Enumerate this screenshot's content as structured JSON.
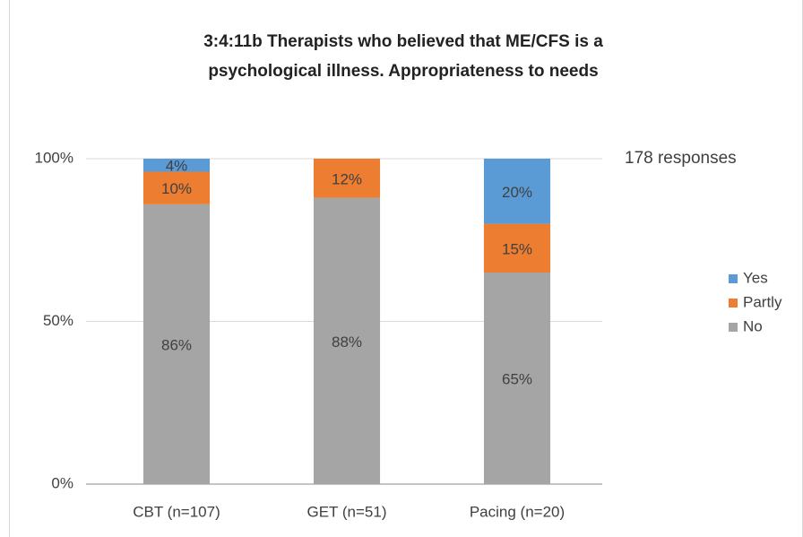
{
  "chart_data": {
    "type": "stacked_bar",
    "title": [
      "3:4:11b Therapists who believed that ME/CFS is a",
      "psychological  illness. Appropriateness to needs"
    ],
    "annotation": "178 responses",
    "categories": [
      "CBT (n=107)",
      "GET (n=51)",
      "Pacing (n=20)"
    ],
    "series": [
      {
        "name": "No",
        "color": "#a5a5a5",
        "values": [
          86,
          88,
          65
        ],
        "value_labels": [
          "86%",
          "88%",
          "65%"
        ]
      },
      {
        "name": "Partly",
        "color": "#ed7d31",
        "values": [
          10,
          12,
          15
        ],
        "value_labels": [
          "10%",
          "12%",
          "15%"
        ]
      },
      {
        "name": "Yes",
        "color": "#5b9bd5",
        "values": [
          4,
          0,
          20
        ],
        "value_labels": [
          "4%",
          null,
          "20%"
        ]
      }
    ],
    "ylim": [
      0,
      100
    ],
    "yticks": [
      {
        "value": 0,
        "label": "0%"
      },
      {
        "value": 50,
        "label": "50%"
      },
      {
        "value": 100,
        "label": "100%"
      }
    ],
    "grid": true,
    "legend": "right"
  }
}
